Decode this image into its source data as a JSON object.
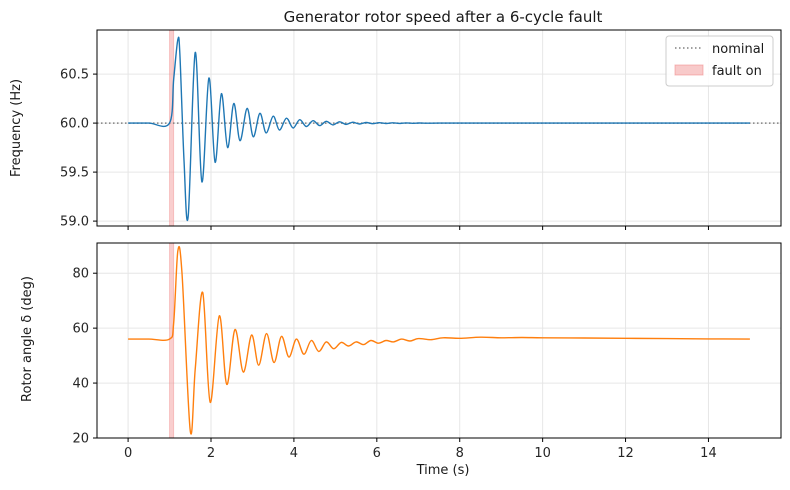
{
  "chart_data": [
    {
      "type": "line",
      "title": "Generator rotor speed after a 6-cycle fault",
      "xlabel": "",
      "ylabel": "Frequency (Hz)",
      "xlim": [
        -0.75,
        15.75
      ],
      "ylim": [
        58.95,
        60.95
      ],
      "yticks": [
        59.0,
        59.5,
        60.0,
        60.5
      ],
      "ytick_labels": [
        "59.0",
        "59.5",
        "60.0",
        "60.5"
      ],
      "xticks": [
        0,
        2,
        4,
        6,
        8,
        10,
        12,
        14
      ],
      "grid": true,
      "legend": {
        "position": "top-right",
        "entries": [
          {
            "label": "nominal",
            "style": "dotted-line",
            "color": "#808080"
          },
          {
            "label": "fault on",
            "style": "patch",
            "color": "#f4a6a6"
          }
        ]
      },
      "fault_span": [
        1.0,
        1.1
      ],
      "nominal": 60.0,
      "series": [
        {
          "color": "#1f77b4",
          "x": [
            0,
            0.5,
            1.0,
            1.1,
            1.2,
            1.25,
            1.35,
            1.45,
            1.62,
            1.78,
            1.95,
            2.1,
            2.25,
            2.4,
            2.55,
            2.7,
            2.87,
            3.02,
            3.18,
            3.33,
            3.5,
            3.65,
            3.82,
            3.98,
            4.14,
            4.3,
            4.46,
            4.62,
            4.78,
            4.94,
            5.1,
            5.26,
            5.42,
            5.58,
            5.74,
            5.9,
            6.06,
            6.22,
            6.38,
            6.54,
            6.7,
            6.86,
            7.02,
            7.2,
            7.5,
            8.0,
            9.0,
            10.0,
            12.0,
            15.0
          ],
          "y": [
            60.0,
            60.0,
            60.0,
            60.45,
            60.85,
            60.7,
            59.6,
            59.05,
            60.72,
            59.4,
            60.46,
            59.6,
            60.3,
            59.75,
            60.2,
            59.82,
            60.15,
            59.86,
            60.1,
            59.9,
            60.07,
            59.93,
            60.05,
            59.95,
            60.035,
            59.965,
            60.025,
            59.975,
            60.018,
            59.982,
            60.013,
            59.987,
            60.009,
            59.991,
            60.006,
            59.994,
            60.004,
            59.996,
            60.003,
            59.997,
            60.002,
            59.998,
            60.001,
            59.999,
            60.0,
            60.0,
            60.0,
            60.0,
            60.0,
            60.0
          ]
        }
      ]
    },
    {
      "type": "line",
      "title": "",
      "xlabel": "Time (s)",
      "ylabel": "Rotor angle δ (deg)",
      "xlim": [
        -0.75,
        15.75
      ],
      "ylim": [
        20,
        91
      ],
      "yticks": [
        20,
        40,
        60,
        80
      ],
      "xticks": [
        0,
        2,
        4,
        6,
        8,
        10,
        12,
        14
      ],
      "grid": true,
      "fault_span": [
        1.0,
        1.1
      ],
      "series": [
        {
          "color": "#ff7f0e",
          "x": [
            0,
            0.5,
            1.0,
            1.1,
            1.2,
            1.3,
            1.5,
            1.62,
            1.8,
            1.98,
            2.2,
            2.38,
            2.58,
            2.78,
            2.98,
            3.15,
            3.34,
            3.52,
            3.7,
            3.88,
            4.06,
            4.24,
            4.42,
            4.6,
            4.78,
            4.96,
            5.14,
            5.32,
            5.5,
            5.68,
            5.86,
            6.04,
            6.22,
            6.4,
            6.6,
            6.8,
            7.0,
            7.3,
            7.6,
            8.0,
            8.5,
            9.0,
            9.5,
            10.0,
            11.0,
            12.0,
            13.0,
            14.0,
            15.0
          ],
          "y": [
            56,
            56,
            56,
            62,
            88,
            80,
            22.5,
            45,
            73,
            33,
            64.5,
            39.5,
            59.5,
            44,
            57.5,
            46.5,
            58,
            47.5,
            57,
            49.5,
            56,
            50.5,
            55.5,
            51.5,
            55,
            52.5,
            54.8,
            53.5,
            55,
            54,
            55.5,
            54.5,
            55.5,
            55,
            56,
            55.3,
            56.2,
            55.8,
            56.5,
            56.3,
            56.7,
            56.5,
            56.6,
            56.5,
            56.4,
            56.3,
            56.2,
            56.1,
            56
          ]
        }
      ]
    }
  ]
}
